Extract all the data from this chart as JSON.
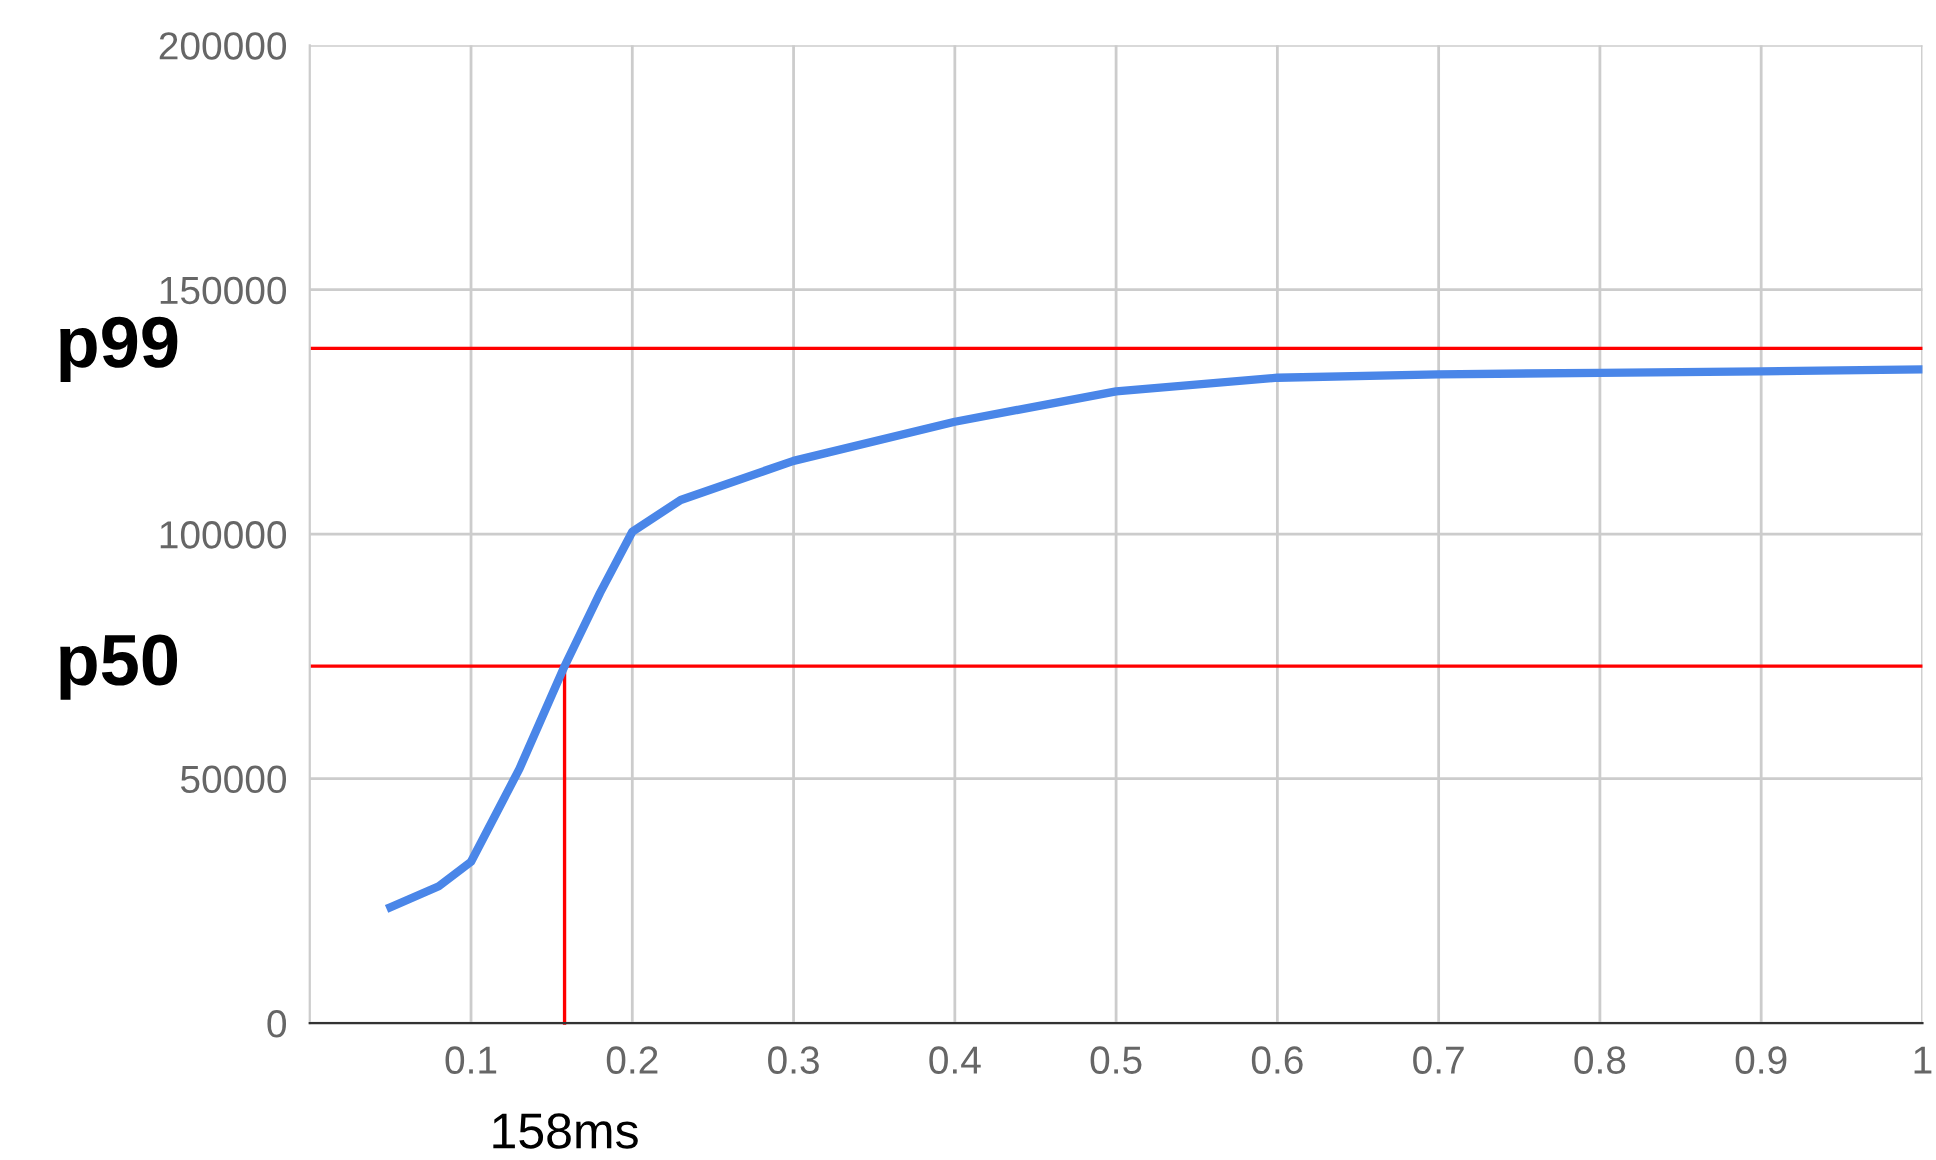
{
  "chart_data": {
    "type": "line",
    "x": [
      0.05,
      0.08,
      0.1,
      0.13,
      0.158,
      0.18,
      0.2,
      0.23,
      0.3,
      0.4,
      0.5,
      0.6,
      0.7,
      0.8,
      0.9,
      1.0
    ],
    "series": [
      {
        "color": "#4a86e8",
        "values": [
          23700,
          28000,
          33000,
          52000,
          73000,
          88000,
          100500,
          107000,
          115000,
          123000,
          129200,
          132000,
          132700,
          133000,
          133300,
          133700
        ]
      }
    ],
    "xlim": [
      0,
      1
    ],
    "xticks": [
      0.1,
      0.2,
      0.3,
      0.4,
      0.5,
      0.6,
      0.7,
      0.8,
      0.9,
      1
    ],
    "ylim": [
      0,
      200000
    ],
    "yticks": [
      0,
      50000,
      100000,
      150000,
      200000
    ],
    "grid": true,
    "marker": "none",
    "line_style": "solid",
    "ref_lines": [
      {
        "axis": "y",
        "value": 138000,
        "label": "p99",
        "color": "#ff0000"
      },
      {
        "axis": "y",
        "value": 73000,
        "label": "p50",
        "color": "#ff0000"
      },
      {
        "axis": "x",
        "value": 0.158,
        "label": "158ms",
        "color": "#ff0000"
      }
    ]
  }
}
